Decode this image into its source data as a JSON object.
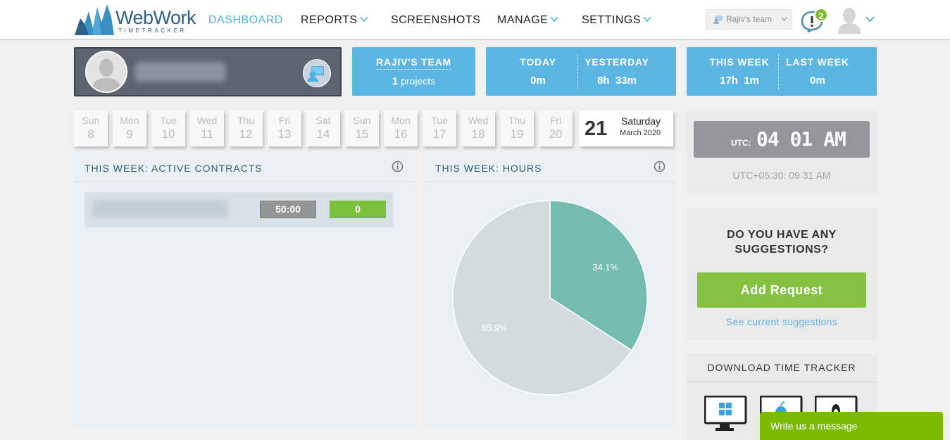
{
  "header": {
    "logo_name": "WebWork",
    "logo_sub": "TIMETRACKER",
    "nav": [
      {
        "label": "DASHBOARD",
        "active": true
      },
      {
        "label": "REPORTS",
        "dropdown": true
      },
      {
        "label": "SCREENSHOTS"
      },
      {
        "label": "MANAGE",
        "dropdown": true
      },
      {
        "label": "SETTINGS",
        "dropdown": true
      }
    ],
    "team_select": "Rajiv's team",
    "notification_count": "2",
    "icons": [
      "bell-icon",
      "user-avatar-icon",
      "chevron-down-icon"
    ]
  },
  "profile": {
    "name_hidden": true
  },
  "team_card": {
    "title": "RAJIV'S TEAM",
    "count": "1",
    "count_label": "projects"
  },
  "day_card": {
    "today_label": "TODAY",
    "today_value": "0m",
    "yesterday_label": "YESTERDAY",
    "yesterday_value": "8h  33m"
  },
  "week_card": {
    "this_week_label": "THIS WEEK",
    "this_week_value": "17h  1m",
    "last_week_label": "LAST WEEK",
    "last_week_value": "0m"
  },
  "calendar": {
    "days": [
      {
        "name": "Sun",
        "num": "8"
      },
      {
        "name": "Mon",
        "num": "9"
      },
      {
        "name": "Tue",
        "num": "10"
      },
      {
        "name": "Wed",
        "num": "11"
      },
      {
        "name": "Thu",
        "num": "12"
      },
      {
        "name": "Fri",
        "num": "13"
      },
      {
        "name": "Sat",
        "num": "14"
      },
      {
        "name": "Sun",
        "num": "15"
      },
      {
        "name": "Mon",
        "num": "16"
      },
      {
        "name": "Tue",
        "num": "17"
      },
      {
        "name": "Wed",
        "num": "18"
      },
      {
        "name": "Thu",
        "num": "19"
      },
      {
        "name": "Fri",
        "num": "20"
      }
    ],
    "today": {
      "num": "21",
      "day": "Saturday",
      "month": "March 2020"
    }
  },
  "contracts_panel": {
    "title": "THIS WEEK: ACTIVE CONTRACTS",
    "rows": [
      {
        "limit": "50:00",
        "hours": "0"
      }
    ]
  },
  "hours_panel": {
    "title": "THIS WEEK: HOURS"
  },
  "chart_data": {
    "type": "pie",
    "title": "THIS WEEK: HOURS",
    "slices": [
      {
        "label": "34.1%",
        "value": 34.1,
        "color": "#74bcb0"
      },
      {
        "label": "65.9%",
        "value": 65.9,
        "color": "#d2dcde"
      }
    ]
  },
  "clock": {
    "utc_label": "UTC:",
    "utc_time": "04 01 AM",
    "local": "UTC+05:30: 09 31 AM"
  },
  "suggestions": {
    "question": "DO YOU HAVE ANY SUGGESTIONS?",
    "button": "Add Request",
    "link": "See current suggestions"
  },
  "download": {
    "title": "DOWNLOAD TIME TRACKER",
    "platforms": [
      "windows-icon",
      "apple-icon",
      "linux-icon"
    ]
  },
  "chat": {
    "label": "Write us a message"
  },
  "colors": {
    "accent": "#5bb6e4",
    "green": "#86c241",
    "panel_bg": "#eaf0f3"
  }
}
